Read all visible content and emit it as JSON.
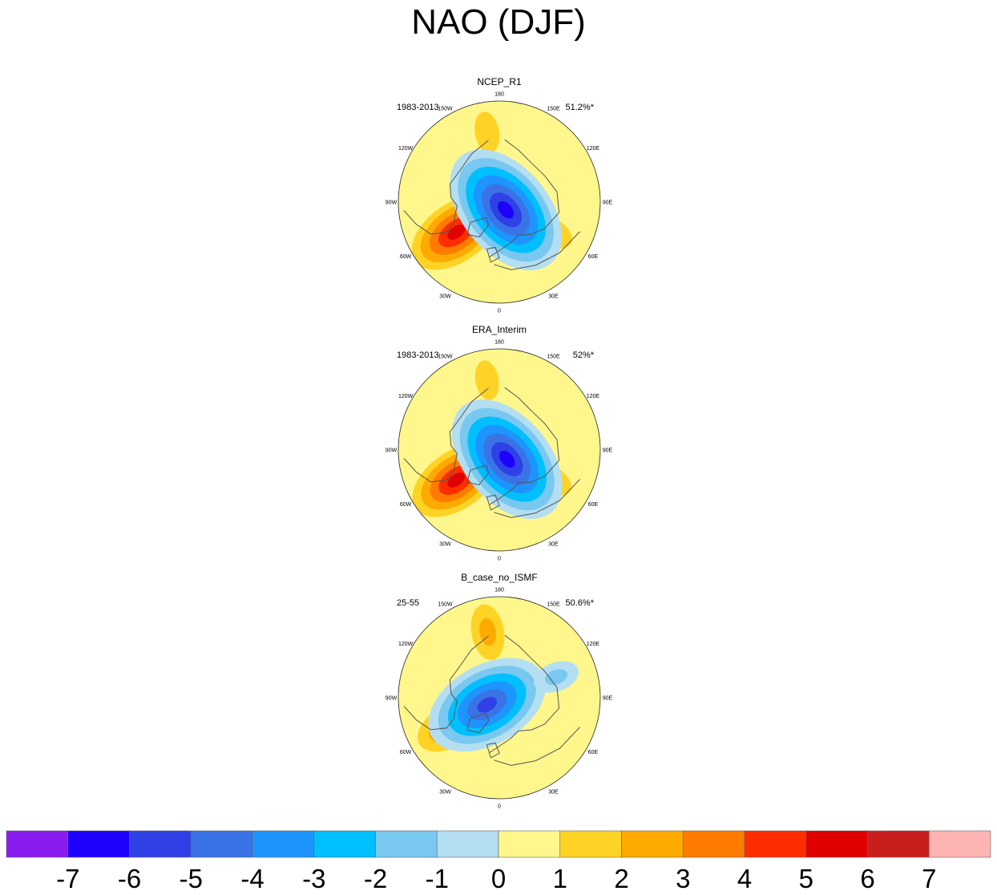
{
  "figure": {
    "title": "NAO (DJF)"
  },
  "chart_data": {
    "type": "heatmap",
    "projection": "north-polar-stereographic",
    "title": "NAO (DJF)",
    "panels": [
      {
        "name": "NCEP_R1",
        "period": "1983-2013",
        "explained_variance": "51.2%*"
      },
      {
        "name": "ERA_Interim",
        "period": "1983-2013",
        "explained_variance": "52%*"
      },
      {
        "name": "B_case_no_ISMF",
        "period": "25-55",
        "explained_variance": "50.6%*"
      }
    ],
    "longitude_ticks": [
      "180",
      "150E",
      "120E",
      "90E",
      "60E",
      "30E",
      "0",
      "30W",
      "60W",
      "90W",
      "120W",
      "150W"
    ],
    "colorbar": {
      "levels": [
        -7,
        -6,
        -5,
        -4,
        -3,
        -2,
        -1,
        0,
        1,
        2,
        3,
        4,
        5,
        6,
        7
      ],
      "labels": [
        "-7",
        "-6",
        "-5",
        "-4",
        "-3",
        "-2",
        "-1",
        "0",
        "1",
        "2",
        "3",
        "4",
        "5",
        "6",
        "7"
      ],
      "colors": [
        "#8a1cf0",
        "#1e00ff",
        "#2f41e6",
        "#3a73e6",
        "#1e94ff",
        "#00bfff",
        "#78c8f0",
        "#b4def2",
        "#fff78c",
        "#ffd326",
        "#ffaa00",
        "#ff7b00",
        "#ff2d00",
        "#e00000",
        "#c81e1e",
        "#ffb4b4"
      ]
    },
    "centers": [
      {
        "panel": 0,
        "lon": 40,
        "colat": 0.1,
        "value": -6.3
      },
      {
        "panel": 0,
        "lon": -55,
        "colat": 0.52,
        "value": 5.3
      },
      {
        "panel": 0,
        "lon": -170,
        "colat": 0.7,
        "value": 1.6
      },
      {
        "panel": 0,
        "lon": 60,
        "colat": 0.58,
        "value": 2.0
      },
      {
        "panel": 1,
        "lon": 40,
        "colat": 0.12,
        "value": -6.2
      },
      {
        "panel": 1,
        "lon": -55,
        "colat": 0.52,
        "value": 5.2
      },
      {
        "panel": 1,
        "lon": -170,
        "colat": 0.7,
        "value": 1.5
      },
      {
        "panel": 1,
        "lon": 60,
        "colat": 0.58,
        "value": 1.9
      },
      {
        "panel": 2,
        "lon": -60,
        "colat": 0.14,
        "value": -5.6
      },
      {
        "panel": 2,
        "lon": -60,
        "colat": 0.55,
        "value": 3.6
      },
      {
        "panel": 2,
        "lon": -170,
        "colat": 0.66,
        "value": 2.5
      },
      {
        "panel": 2,
        "lon": 110,
        "colat": 0.6,
        "value": -1.0
      }
    ]
  }
}
